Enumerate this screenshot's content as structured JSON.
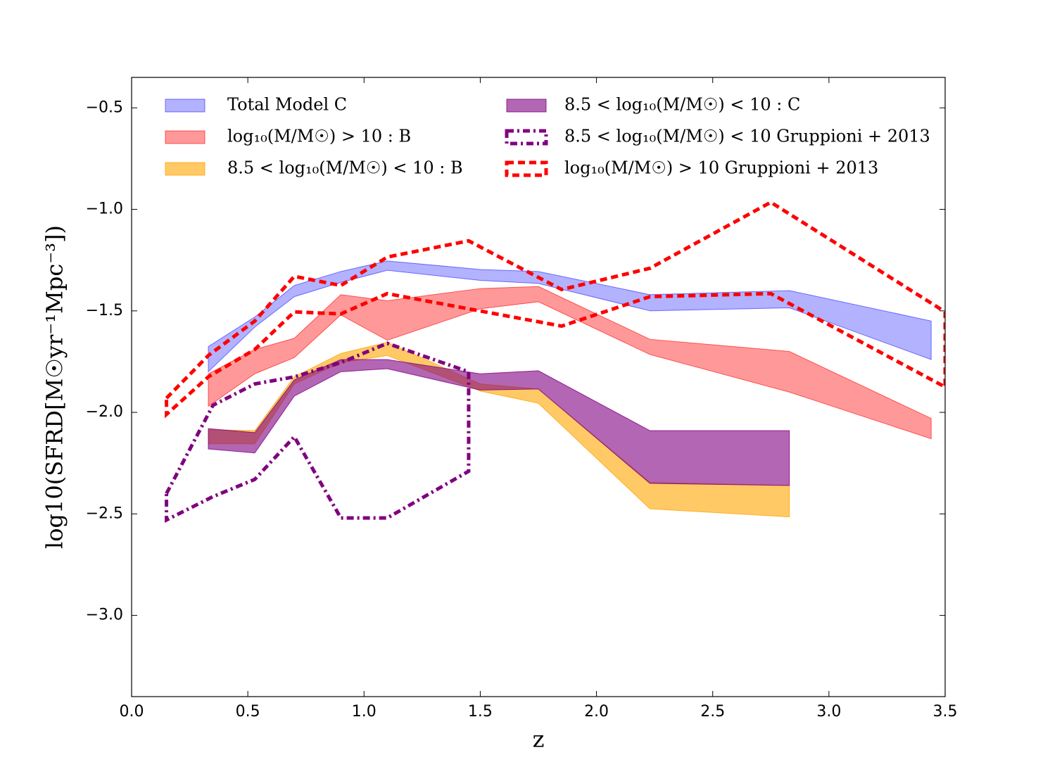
{
  "chart_data": {
    "type": "band",
    "xlabel": "z",
    "ylabel": "log10(SFRD[M☉yr⁻¹Mpc⁻³])",
    "xlim": [
      0,
      3.5
    ],
    "ylim": [
      -3.4,
      -0.35
    ],
    "xticks": [
      {
        "value": 0,
        "label": "0.0"
      },
      {
        "value": 0.5,
        "label": "0.5"
      },
      {
        "value": 1,
        "label": "1.0"
      },
      {
        "value": 1.5,
        "label": "1.5"
      },
      {
        "value": 2,
        "label": "2.0"
      },
      {
        "value": 2.5,
        "label": "2.5"
      },
      {
        "value": 3,
        "label": "3.0"
      },
      {
        "value": 3.5,
        "label": "3.5"
      }
    ],
    "yticks": [
      {
        "value": -0.5,
        "label": "−0.5"
      },
      {
        "value": -1,
        "label": "−1.0"
      },
      {
        "value": -1.5,
        "label": "−1.5"
      },
      {
        "value": -2,
        "label": "−2.0"
      },
      {
        "value": -2.5,
        "label": "−2.5"
      },
      {
        "value": -3,
        "label": "−3.0"
      }
    ],
    "legend": "upper",
    "series": [
      {
        "name": "Total Model C",
        "color": "#0000ff",
        "alpha": 0.3,
        "linestyle": "fill",
        "x": [
          0.33,
          0.53,
          0.7,
          0.9,
          1.1,
          1.5,
          1.75,
          2.23,
          2.83,
          3.44
        ],
        "upper": [
          -1.676,
          -1.53,
          -1.375,
          -1.306,
          -1.254,
          -1.296,
          -1.306,
          -1.42,
          -1.4,
          -1.55
        ],
        "lower": [
          -1.8,
          -1.58,
          -1.43,
          -1.36,
          -1.3,
          -1.35,
          -1.365,
          -1.5,
          -1.485,
          -1.74
        ]
      },
      {
        "name": "log₁₀(M/M☉) > 10 :  B",
        "color": "#ff0000",
        "alpha": 0.4,
        "linestyle": "fill",
        "x": [
          0.33,
          0.53,
          0.7,
          0.9,
          1.1,
          1.5,
          1.75,
          2.23,
          2.83,
          3.44
        ],
        "upper": [
          -1.81,
          -1.69,
          -1.635,
          -1.42,
          -1.45,
          -1.39,
          -1.38,
          -1.64,
          -1.7,
          -2.03
        ],
        "lower": [
          -1.97,
          -1.81,
          -1.73,
          -1.52,
          -1.645,
          -1.49,
          -1.455,
          -1.715,
          -1.9,
          -2.13
        ]
      },
      {
        "name": "8.5 < log₁₀(M/M☉) < 10 :  B",
        "color": "#ffa500",
        "alpha": 0.6,
        "linestyle": "fill",
        "x": [
          0.33,
          0.53,
          0.7,
          0.9,
          1.1,
          1.5,
          1.75,
          2.23,
          2.83
        ],
        "upper": [
          -2.085,
          -2.09,
          -1.825,
          -1.71,
          -1.655,
          -1.86,
          -1.885,
          -2.345,
          -2.36
        ],
        "lower": [
          -2.155,
          -2.155,
          -1.86,
          -1.755,
          -1.72,
          -1.895,
          -1.955,
          -2.475,
          -2.515
        ]
      },
      {
        "name": "8.5 < log₁₀(M/M☉) < 10 :  C",
        "color": "#800080",
        "alpha": 0.6,
        "linestyle": "fill",
        "x": [
          0.33,
          0.53,
          0.7,
          0.9,
          1.1,
          1.5,
          1.75,
          2.23,
          2.83
        ],
        "upper": [
          -2.08,
          -2.1,
          -1.84,
          -1.74,
          -1.74,
          -1.81,
          -1.795,
          -2.09,
          -2.09
        ],
        "lower": [
          -2.18,
          -2.2,
          -1.92,
          -1.8,
          -1.785,
          -1.89,
          -1.885,
          -2.35,
          -2.36
        ]
      },
      {
        "name": "8.5 < log₁₀(M/M☉) < 10 Gruppioni + 2013",
        "color": "#800080",
        "alpha": 1,
        "linestyle": "dashdot",
        "x": [
          0.15,
          0.35,
          0.53,
          0.7,
          0.9,
          1.1,
          1.45
        ],
        "upper": [
          -2.4,
          -1.965,
          -1.86,
          -1.825,
          -1.755,
          -1.66,
          -1.8
        ],
        "lower": [
          -2.53,
          -2.415,
          -2.33,
          -2.12,
          -2.52,
          -2.52,
          -2.29
        ]
      },
      {
        "name": "log₁₀(M/M☉) > 10 Gruppioni + 2013",
        "color": "#ff0000",
        "alpha": 1,
        "linestyle": "dashed",
        "x": [
          0.15,
          0.33,
          0.53,
          0.7,
          0.9,
          1.1,
          1.45,
          1.85,
          2.23,
          2.75,
          3.5
        ],
        "upper": [
          -1.93,
          -1.72,
          -1.55,
          -1.33,
          -1.375,
          -1.235,
          -1.155,
          -1.395,
          -1.29,
          -0.965,
          -1.505
        ],
        "lower": [
          -2.01,
          -1.825,
          -1.69,
          -1.505,
          -1.515,
          -1.415,
          -1.49,
          -1.575,
          -1.43,
          -1.415,
          -1.875
        ]
      }
    ]
  }
}
